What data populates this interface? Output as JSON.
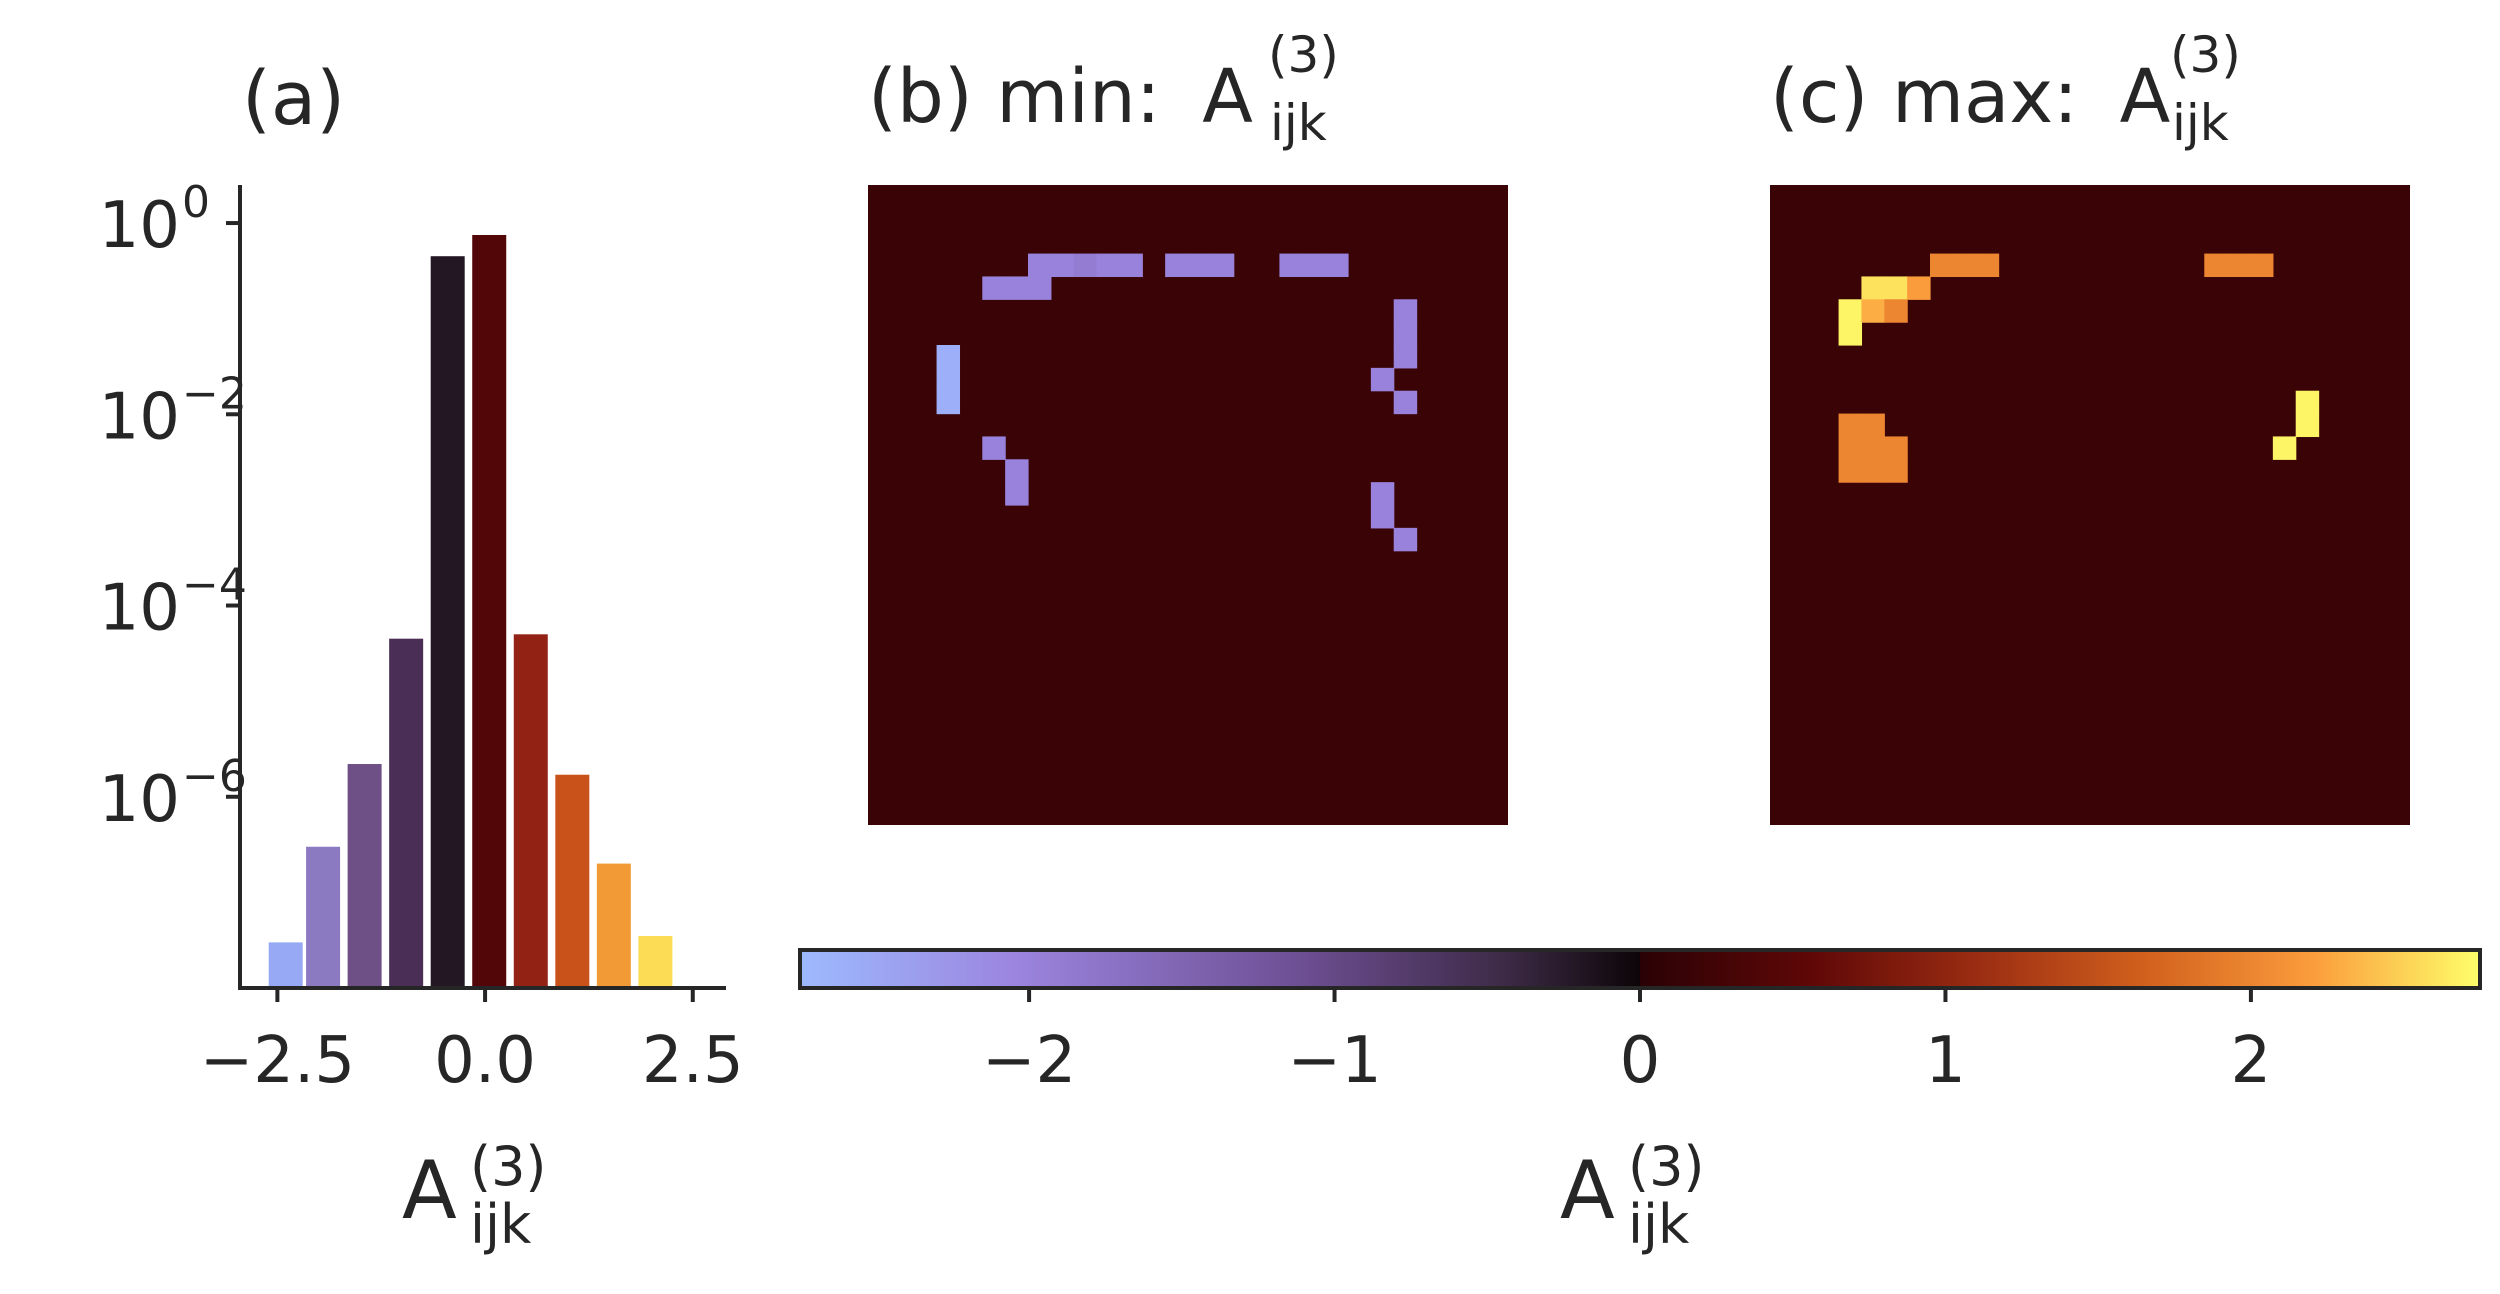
{
  "panels": {
    "a": {
      "label": "(a)"
    },
    "b": {
      "label": "(b) min:",
      "symbol": "A",
      "sub": "ijk",
      "sup": "(3)"
    },
    "c": {
      "label": "(c) max:",
      "symbol": "A",
      "sub": "ijk",
      "sup": "(3)"
    }
  },
  "histogram_xlabel": {
    "symbol": "A",
    "sub": "ijk",
    "sup": "(3)"
  },
  "colorbar_label": {
    "symbol": "A",
    "sub": "ijk",
    "sup": "(3)"
  },
  "colors": {
    "heatmap_background": "#3a0306",
    "axis": "#262626"
  },
  "chart_data": [
    {
      "type": "bar",
      "panel": "(a)",
      "x": [
        -2.5,
        -2.0,
        -1.5,
        -1.0,
        -0.5,
        0.0,
        0.5,
        1.0,
        1.5,
        2.0,
        2.5
      ],
      "values": [
        2.1e-08,
        3e-07,
        2.2e-06,
        4.5e-05,
        0.45,
        0.75,
        5e-05,
        1.7e-06,
        1.9e-07,
        1.6e-08,
        0
      ],
      "bar_x": [
        -2.4,
        -1.95,
        -1.45,
        -0.95,
        -0.45,
        0.05,
        0.55,
        1.05,
        1.55,
        2.05,
        2.55
      ],
      "bar_values": [
        3e-08,
        3e-07,
        2.2e-06,
        4.5e-05,
        0.45,
        0.75,
        5e-05,
        1.7e-06,
        2e-07,
        3.5e-08
      ],
      "bar_colors": [
        "#97a9f4",
        "#8b79c2",
        "#6e5087",
        "#4a2e55",
        "#221722",
        "#520607",
        "#922314",
        "#c9521b",
        "#f29a35",
        "#fddc55"
      ],
      "xticks": [
        "−2.5",
        "0.0",
        "2.5"
      ],
      "xtick_values": [
        -2.5,
        0.0,
        2.5
      ],
      "xlim": [
        -2.95,
        2.9
      ],
      "yscale": "log",
      "ylim": [
        1e-08,
        2.5
      ],
      "ytick_values": [
        1,
        0.01,
        0.0001,
        1e-06
      ],
      "yticks": [
        {
          "base": "10",
          "exp": "0"
        },
        {
          "base": "10",
          "exp": "−2"
        },
        {
          "base": "10",
          "exp": "−4"
        },
        {
          "base": "10",
          "exp": "−6"
        }
      ]
    },
    {
      "type": "heatmap",
      "panel": "(b)",
      "grid": [
        28,
        28
      ],
      "background_value": 0,
      "cells": [
        [
          7,
          3,
          -2.0
        ],
        [
          8,
          3,
          -2.0
        ],
        [
          9,
          3,
          -1.9
        ],
        [
          10,
          3,
          -2.0
        ],
        [
          11,
          3,
          -2.0
        ],
        [
          13,
          3,
          -2.0
        ],
        [
          14,
          3,
          -2.0
        ],
        [
          15,
          3,
          -2.0
        ],
        [
          18,
          3,
          -2.0
        ],
        [
          19,
          3,
          -2.0
        ],
        [
          20,
          3,
          -2.0
        ],
        [
          5,
          4,
          -2.0
        ],
        [
          6,
          4,
          -2.0
        ],
        [
          7,
          4,
          -2.0
        ],
        [
          23,
          5,
          -2.0
        ],
        [
          23,
          6,
          -2.0
        ],
        [
          23,
          7,
          -2.0
        ],
        [
          3,
          7,
          -2.6
        ],
        [
          3,
          8,
          -2.6
        ],
        [
          3,
          9,
          -2.6
        ],
        [
          22,
          8,
          -2.0
        ],
        [
          23,
          9,
          -2.0
        ],
        [
          5,
          11,
          -2.0
        ],
        [
          6,
          12,
          -2.0
        ],
        [
          6,
          13,
          -2.0
        ],
        [
          22,
          13,
          -2.0
        ],
        [
          22,
          14,
          -2.0
        ],
        [
          23,
          15,
          -2.0
        ]
      ]
    },
    {
      "type": "heatmap",
      "panel": "(c)",
      "grid": [
        28,
        28
      ],
      "background_value": 0,
      "cells": [
        [
          7,
          3,
          2.0
        ],
        [
          8,
          3,
          2.0
        ],
        [
          9,
          3,
          2.0
        ],
        [
          19,
          3,
          2.0
        ],
        [
          20,
          3,
          2.0
        ],
        [
          21,
          3,
          2.0
        ],
        [
          4,
          4,
          2.6
        ],
        [
          5,
          4,
          2.6
        ],
        [
          6,
          4,
          2.2
        ],
        [
          3,
          5,
          2.7
        ],
        [
          4,
          5,
          2.3
        ],
        [
          5,
          5,
          2.0
        ],
        [
          3,
          6,
          2.7
        ],
        [
          23,
          9,
          2.7
        ],
        [
          23,
          10,
          2.7
        ],
        [
          22,
          11,
          2.7
        ],
        [
          3,
          10,
          2.0
        ],
        [
          4,
          10,
          2.0
        ],
        [
          3,
          11,
          2.0
        ],
        [
          4,
          11,
          2.0
        ],
        [
          5,
          11,
          2.0
        ],
        [
          3,
          12,
          2.0
        ],
        [
          4,
          12,
          2.0
        ],
        [
          5,
          12,
          2.0
        ]
      ]
    },
    {
      "type": "colorbar",
      "range": [
        -2.75,
        2.75
      ],
      "tick_values": [
        -2,
        -1,
        0,
        1,
        2
      ],
      "ticks": [
        "−2",
        "−1",
        "0",
        "1",
        "2"
      ]
    }
  ]
}
